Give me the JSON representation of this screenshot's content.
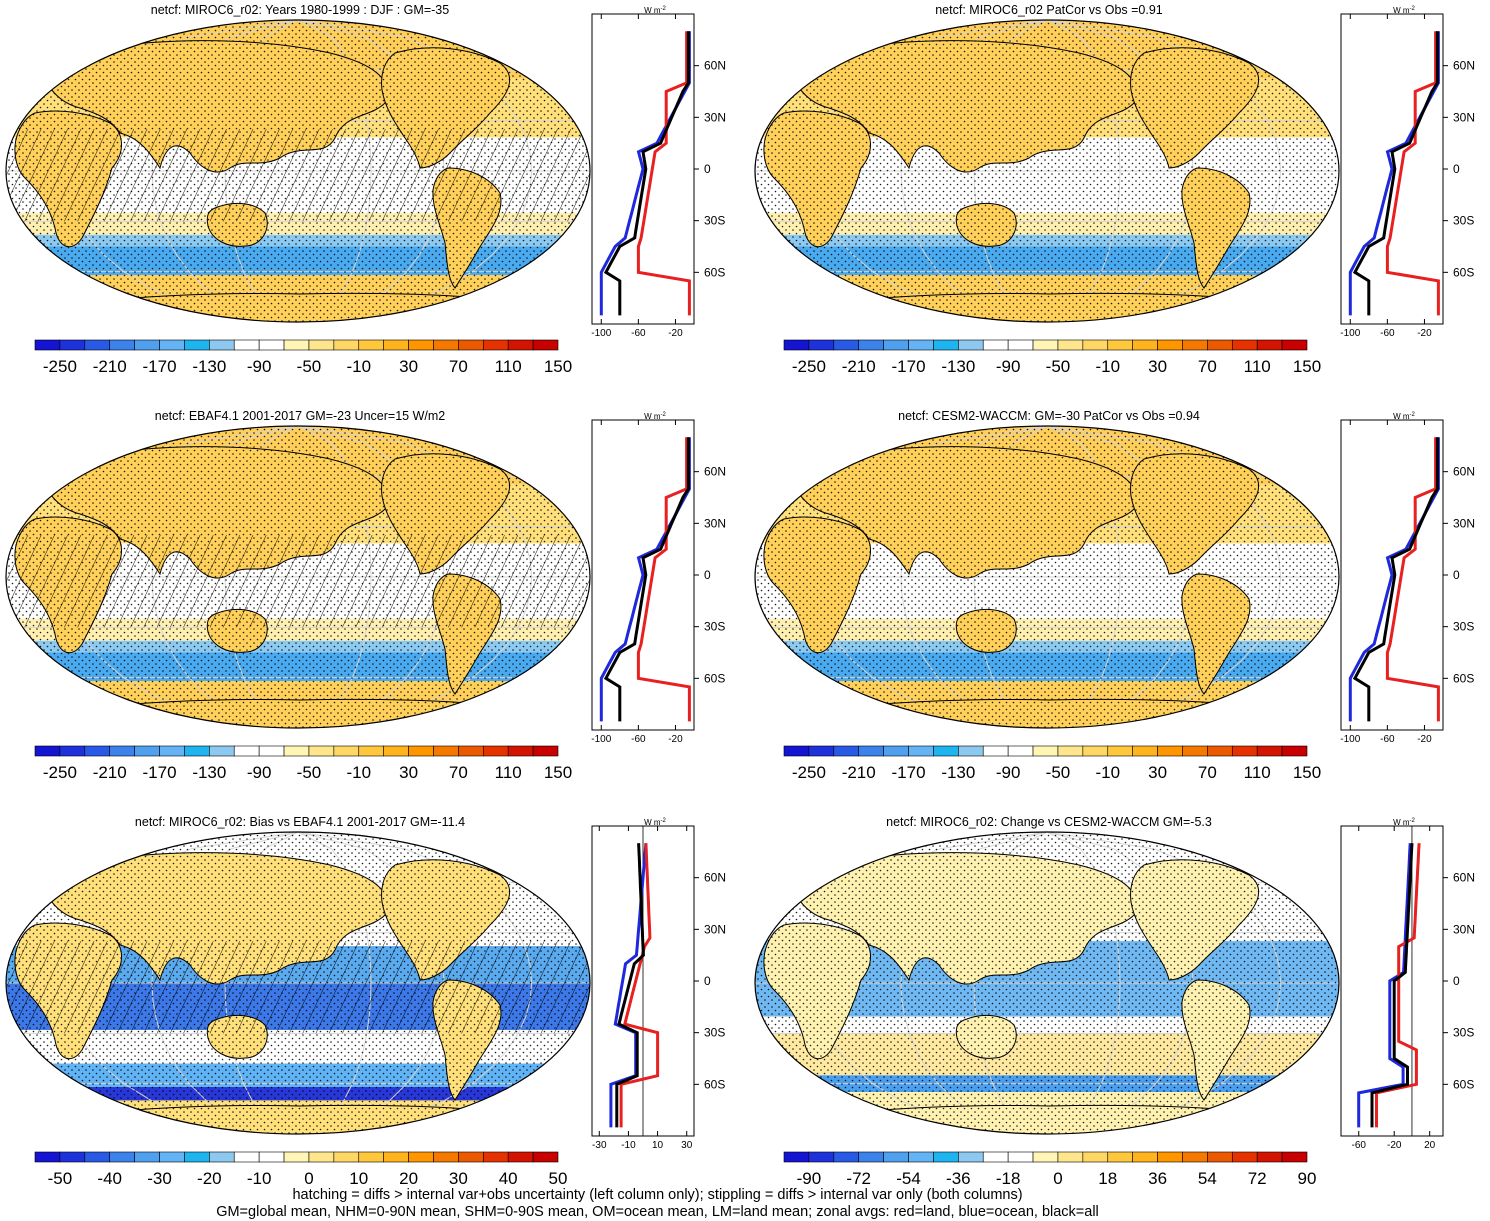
{
  "panels": [
    {
      "title": "netcf: MIROC6_r02: Years 1980-1999 : DJF : GM=-35",
      "hatched": true,
      "variant": "clim",
      "colorbar": {
        "labels": [
          "-250",
          "-210",
          "-170",
          "-130",
          "-90",
          "-50",
          "-10",
          "30",
          "70",
          "110",
          "150"
        ],
        "colors": [
          "#1414d2",
          "#1e32dc",
          "#285ae6",
          "#3c82eb",
          "#50a0f0",
          "#64b4f5",
          "#1eb4f0",
          "#8cc8f0",
          "#ffffff",
          "#ffffff",
          "#fff5b4",
          "#ffe68c",
          "#ffd764",
          "#ffc83c",
          "#ffb41e",
          "#ff9600",
          "#f57800",
          "#eb5a00",
          "#e63200",
          "#d21400",
          "#c80000"
        ]
      },
      "zonal": {
        "units_label": "W m",
        "units_exp": "-2",
        "xticks": [
          "-100",
          "-60",
          "-20"
        ],
        "xmin": -110,
        "xmax": 0,
        "lat_labels": [
          "60N",
          "30N",
          "0",
          "30S",
          "60S"
        ]
      }
    },
    {
      "title": "netcf: MIROC6_r02 PatCor vs Obs =0.91",
      "hatched": false,
      "variant": "clim",
      "colorbar": {
        "labels": [
          "-250",
          "-210",
          "-170",
          "-130",
          "-90",
          "-50",
          "-10",
          "30",
          "70",
          "110",
          "150"
        ],
        "colors": [
          "#1414d2",
          "#1e32dc",
          "#285ae6",
          "#3c82eb",
          "#50a0f0",
          "#64b4f5",
          "#1eb4f0",
          "#8cc8f0",
          "#ffffff",
          "#ffffff",
          "#fff5b4",
          "#ffe68c",
          "#ffd764",
          "#ffc83c",
          "#ffb41e",
          "#ff9600",
          "#f57800",
          "#eb5a00",
          "#e63200",
          "#d21400",
          "#c80000"
        ]
      },
      "zonal": {
        "units_label": "W m",
        "units_exp": "-2",
        "xticks": [
          "-100",
          "-60",
          "-20"
        ],
        "xmin": -110,
        "xmax": 0,
        "lat_labels": [
          "60N",
          "30N",
          "0",
          "30S",
          "60S"
        ]
      }
    },
    {
      "title": "netcf: EBAF4.1 2001-2017 GM=-23 Uncer=15 W/m2",
      "hatched": true,
      "variant": "clim",
      "colorbar": {
        "labels": [
          "-250",
          "-210",
          "-170",
          "-130",
          "-90",
          "-50",
          "-10",
          "30",
          "70",
          "110",
          "150"
        ],
        "colors": [
          "#1414d2",
          "#1e32dc",
          "#285ae6",
          "#3c82eb",
          "#50a0f0",
          "#64b4f5",
          "#1eb4f0",
          "#8cc8f0",
          "#ffffff",
          "#ffffff",
          "#fff5b4",
          "#ffe68c",
          "#ffd764",
          "#ffc83c",
          "#ffb41e",
          "#ff9600",
          "#f57800",
          "#eb5a00",
          "#e63200",
          "#d21400",
          "#c80000"
        ]
      },
      "zonal": {
        "units_label": "W m",
        "units_exp": "-2",
        "xticks": [
          "-100",
          "-60",
          "-20"
        ],
        "xmin": -110,
        "xmax": 0,
        "lat_labels": [
          "60N",
          "30N",
          "0",
          "30S",
          "60S"
        ]
      }
    },
    {
      "title": "netcf: CESM2-WACCM: GM=-30 PatCor vs Obs =0.94",
      "hatched": false,
      "variant": "clim",
      "colorbar": {
        "labels": [
          "-250",
          "-210",
          "-170",
          "-130",
          "-90",
          "-50",
          "-10",
          "30",
          "70",
          "110",
          "150"
        ],
        "colors": [
          "#1414d2",
          "#1e32dc",
          "#285ae6",
          "#3c82eb",
          "#50a0f0",
          "#64b4f5",
          "#1eb4f0",
          "#8cc8f0",
          "#ffffff",
          "#ffffff",
          "#fff5b4",
          "#ffe68c",
          "#ffd764",
          "#ffc83c",
          "#ffb41e",
          "#ff9600",
          "#f57800",
          "#eb5a00",
          "#e63200",
          "#d21400",
          "#c80000"
        ]
      },
      "zonal": {
        "units_label": "W m",
        "units_exp": "-2",
        "xticks": [
          "-100",
          "-60",
          "-20"
        ],
        "xmin": -110,
        "xmax": 0,
        "lat_labels": [
          "60N",
          "30N",
          "0",
          "30S",
          "60S"
        ]
      }
    },
    {
      "title": "netcf: MIROC6_r02: Bias vs EBAF4.1 2001-2017 GM=-11.4",
      "hatched": true,
      "variant": "bias",
      "colorbar": {
        "labels": [
          "-50",
          "-40",
          "-30",
          "-20",
          "-10",
          "0",
          "10",
          "20",
          "30",
          "40",
          "50"
        ],
        "colors": [
          "#1414d2",
          "#1e32dc",
          "#285ae6",
          "#3c82eb",
          "#50a0f0",
          "#64b4f5",
          "#1eb4f0",
          "#8cc8f0",
          "#ffffff",
          "#ffffff",
          "#fff5b4",
          "#ffe68c",
          "#ffd764",
          "#ffc83c",
          "#ffb41e",
          "#ff9600",
          "#f57800",
          "#eb5a00",
          "#e63200",
          "#d21400",
          "#c80000"
        ]
      },
      "zonal": {
        "units_label": "W m",
        "units_exp": "-2",
        "xticks": [
          "-30",
          "-10",
          "10",
          "30"
        ],
        "xmin": -35,
        "xmax": 35,
        "lat_labels": [
          "60N",
          "30N",
          "0",
          "30S",
          "60S"
        ]
      }
    },
    {
      "title": "netcf: MIROC6_r02: Change vs CESM2-WACCM GM=-5.3",
      "hatched": false,
      "variant": "change",
      "colorbar": {
        "labels": [
          "-90",
          "-72",
          "-54",
          "-36",
          "-18",
          "0",
          "18",
          "36",
          "54",
          "72",
          "90"
        ],
        "colors": [
          "#1414d2",
          "#1e32dc",
          "#285ae6",
          "#3c82eb",
          "#50a0f0",
          "#64b4f5",
          "#1eb4f0",
          "#8cc8f0",
          "#ffffff",
          "#ffffff",
          "#fff5b4",
          "#ffe68c",
          "#ffd764",
          "#ffc83c",
          "#ffb41e",
          "#ff9600",
          "#f57800",
          "#eb5a00",
          "#e63200",
          "#d21400",
          "#c80000"
        ]
      },
      "zonal": {
        "units_label": "W m",
        "units_exp": "-2",
        "xticks": [
          "-60",
          "-20",
          "20"
        ],
        "xmin": -80,
        "xmax": 35,
        "lat_labels": [
          "60N",
          "30N",
          "0",
          "30S",
          "60S"
        ]
      }
    }
  ],
  "footer": {
    "line1": "hatching = diffs > internal var+obs uncertainty (left column only); stippling = diffs > internal var only (both columns)",
    "line2": "GM=global mean, NHM=0-90N mean, SHM=0-90S mean, OM=ocean mean, LM=land mean; zonal avgs: red=land, blue=ocean, black=all"
  },
  "colors": {
    "land": "#e82020",
    "ocean": "#1e28dc",
    "all": "#000000"
  }
}
